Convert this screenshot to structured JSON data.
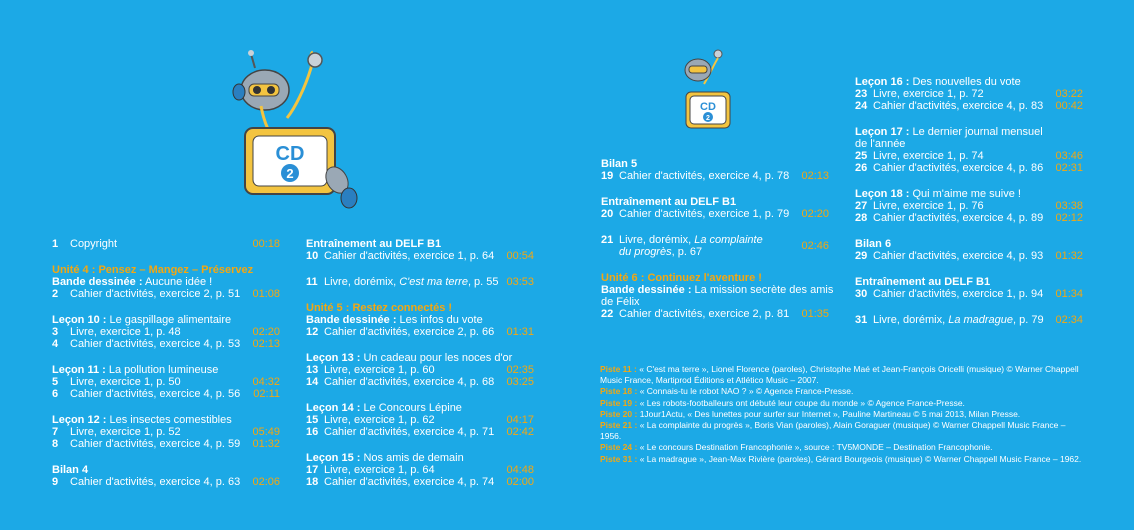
{
  "colors": {
    "background": "#1ca9e6",
    "accent": "#f3a712"
  },
  "col1": {
    "copyright": {
      "num": "1",
      "text": "Copyright",
      "time": "00:18"
    },
    "unit4": "Unité 4 : Pensez – Mangez – Préservez",
    "bd_label": "Bande dessinée :",
    "bd_title": "Aucune idée !",
    "t2": {
      "num": "2",
      "text": "Cahier d'activités, exercice 2, p. 51",
      "time": "01:08"
    },
    "l10_label": "Leçon 10 :",
    "l10_title": "Le gaspillage alimentaire",
    "t3": {
      "num": "3",
      "text": "Livre, exercice 1, p. 48",
      "time": "02:20"
    },
    "t4": {
      "num": "4",
      "text": "Cahier d'activités, exercice 4, p. 53",
      "time": "02:13"
    },
    "l11_label": "Leçon 11 :",
    "l11_title": "La pollution lumineuse",
    "t5": {
      "num": "5",
      "text": "Livre, exercice 1, p. 50",
      "time": "04:32"
    },
    "t6": {
      "num": "6",
      "text": "Cahier d'activités, exercice 4, p. 56",
      "time": "02:11"
    },
    "l12_label": "Leçon 12 :",
    "l12_title": "Les insectes comestibles",
    "t7": {
      "num": "7",
      "text": "Livre, exercice 1, p. 52",
      "time": "05:49"
    },
    "t8": {
      "num": "8",
      "text": "Cahier d'activités, exercice 4, p. 59",
      "time": "01:32"
    },
    "bilan4": "Bilan 4",
    "t9": {
      "num": "9",
      "text": "Cahier d'activités, exercice 4, p. 63",
      "time": "02:06"
    }
  },
  "col2": {
    "delf": "Entraînement au DELF B1",
    "t10": {
      "num": "10",
      "text": "Cahier d'activités, exercice 1, p. 64",
      "time": "00:54"
    },
    "t11": {
      "num": "11",
      "text_a": "Livre, dorémix, ",
      "text_b": "C'est ma terre",
      "text_c": ", p. 55",
      "time": "03:53"
    },
    "unit5": "Unité 5 : Restez connectés !",
    "bd_label": "Bande dessinée :",
    "bd_title": "Les infos du vote",
    "t12": {
      "num": "12",
      "text": "Cahier d'activités, exercice 2, p. 66",
      "time": "01:31"
    },
    "l13_label": "Leçon 13 :",
    "l13_title": "Un cadeau pour les noces d'or",
    "t13": {
      "num": "13",
      "text": "Livre, exercice 1, p. 60",
      "time": "02:35"
    },
    "t14": {
      "num": "14",
      "text": "Cahier d'activités, exercice 4, p. 68",
      "time": "03:25"
    },
    "l14_label": "Leçon 14 :",
    "l14_title": "Le Concours Lépine",
    "t15": {
      "num": "15",
      "text": "Livre, exercice 1, p. 62",
      "time": "04:17"
    },
    "t16": {
      "num": "16",
      "text": "Cahier d'activités, exercice 4, p. 71",
      "time": "02:42"
    },
    "l15_label": "Leçon 15 :",
    "l15_title": "Nos amis de demain",
    "t17": {
      "num": "17",
      "text": "Livre, exercice 1, p. 64",
      "time": "04:48"
    },
    "t18": {
      "num": "18",
      "text": "Cahier d'activités, exercice 4, p. 74",
      "time": "02:00"
    }
  },
  "col3": {
    "bilan5": "Bilan 5",
    "t19": {
      "num": "19",
      "text": "Cahier d'activités, exercice 4, p. 78",
      "time": "02:13"
    },
    "delf": "Entraînement au DELF B1",
    "t20": {
      "num": "20",
      "text": "Cahier d'activités, exercice 1, p. 79",
      "time": "02:20"
    },
    "t21": {
      "num": "21",
      "text_a": "Livre, dorémix, ",
      "text_b": "La complainte",
      "text_c": "du progrès",
      "text_d": ", p. 67",
      "time": "02:46"
    },
    "unit6": "Unité 6 : Continuez l'aventure !",
    "bd_label": "Bande dessinée :",
    "bd_title_1": "La mission secrète des amis",
    "bd_title_2": "de Félix",
    "t22": {
      "num": "22",
      "text": "Cahier d'activités, exercice 2, p. 81",
      "time": "01:35"
    }
  },
  "col4": {
    "l16_label": "Leçon 16 :",
    "l16_title": "Des nouvelles du vote",
    "t23": {
      "num": "23",
      "text": "Livre, exercice 1, p. 72",
      "time": "03:22"
    },
    "t24": {
      "num": "24",
      "text": "Cahier d'activités, exercice 4, p. 83",
      "time": "00:42"
    },
    "l17_label": "Leçon 17 :",
    "l17_title_1": "Le dernier journal mensuel",
    "l17_title_2": "de l'année",
    "t25": {
      "num": "25",
      "text": "Livre, exercice 1, p. 74",
      "time": "03:46"
    },
    "t26": {
      "num": "26",
      "text": "Cahier d'activités, exercice 4, p. 86",
      "time": "02:31"
    },
    "l18_label": "Leçon 18 :",
    "l18_title": "Qui m'aime me suive !",
    "t27": {
      "num": "27",
      "text": "Livre, exercice 1, p. 76",
      "time": "03:38"
    },
    "t28": {
      "num": "28",
      "text": "Cahier d'activités, exercice 4, p. 89",
      "time": "02:12"
    },
    "bilan6": "Bilan 6",
    "t29": {
      "num": "29",
      "text": "Cahier d'activités, exercice 4, p. 93",
      "time": "01:32"
    },
    "delf": "Entraînement au DELF B1",
    "t30": {
      "num": "30",
      "text": "Cahier d'activités, exercice 1, p. 94",
      "time": "01:34"
    },
    "t31": {
      "num": "31",
      "text_a": "Livre, dorémix, ",
      "text_b": "La madrague",
      "text_c": ", p. 79",
      "time": "02:34"
    }
  },
  "notes": [
    {
      "label": "Piste 11 :",
      "text": "« C'est ma terre », Lionel Florence (paroles), Christophe Maé et Jean-François Oricelli (musique) © Warner Chappell Music France, Martiprod Éditions et Atlético Music – 2007."
    },
    {
      "label": "Piste 18 :",
      "text": "« Connais-tu le robot NAO ? » © Agence France-Presse."
    },
    {
      "label": "Piste 19 :",
      "text": "« Les robots-footballeurs ont débuté leur coupe du monde » © Agence France-Presse."
    },
    {
      "label": "Piste 20 :",
      "text": "1Jour1Actu, « Des lunettes pour surfer sur Internet », Pauline Martineau © 5 mai 2013, Milan Presse."
    },
    {
      "label": "Piste 21 :",
      "text": "« La complainte du progrès », Boris Vian (paroles), Alain Goraguer (musique) © Warner Chappell Music France – 1956."
    },
    {
      "label": "Piste 24 :",
      "text": "« Le concours Destination Francophonie », source : TV5MONDE – Destination Francophonie."
    },
    {
      "label": "Piste 31 :",
      "text": "« La madrague », Jean-Max Rivière (paroles), Gérard Bourgeois (musique) © Warner Chappell Music France – 1962."
    }
  ],
  "cd": {
    "label": "CD",
    "number": "2"
  }
}
